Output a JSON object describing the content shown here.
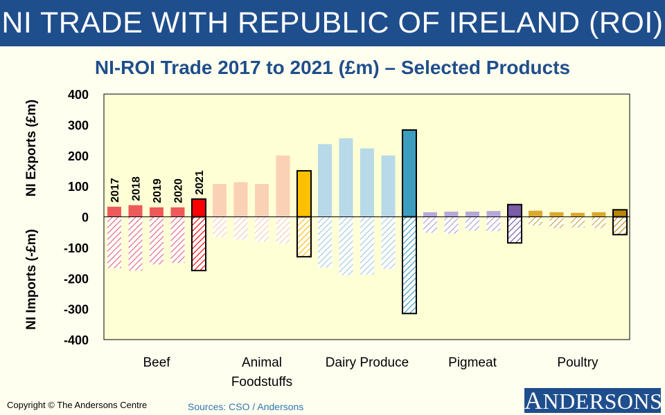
{
  "banner": {
    "title": "NI TRADE WITH REPUBLIC OF IRELAND (ROI)"
  },
  "chart_data": {
    "type": "bar",
    "title": "NI-ROI Trade 2017 to 2021 (£m) – Selected Products",
    "ylabel_top": "NI Exports (£m)",
    "ylabel_bottom": "NI Imports (-£m)",
    "ylim": [
      -400,
      400
    ],
    "yticks": [
      400,
      300,
      200,
      100,
      0,
      -100,
      -200,
      -300,
      -400
    ],
    "years": [
      "2017",
      "2018",
      "2019",
      "2020",
      "2021"
    ],
    "groups": [
      {
        "name": "Beef",
        "label_lines": [
          "Beef"
        ],
        "light": "#ee5a5a",
        "dark": "#ff0000",
        "hatch": "#e36070",
        "exports": [
          33,
          38,
          31,
          31,
          58
        ],
        "imports": [
          -167,
          -175,
          -155,
          -150,
          -175
        ]
      },
      {
        "name": "Animal Foodstuffs",
        "label_lines": [
          "Animal",
          "Foodstuffs"
        ],
        "light": "#fad1b5",
        "dark": "#ffc000",
        "hatch": "#f7c8a6",
        "exports": [
          107,
          113,
          107,
          200,
          150
        ],
        "imports": [
          -65,
          -75,
          -80,
          -88,
          -130
        ]
      },
      {
        "name": "Dairy Produce",
        "label_lines": [
          "Dairy Produce"
        ],
        "light": "#b7d9e8",
        "dark": "#3d9dbe",
        "hatch": "#9cc7dc",
        "exports": [
          237,
          256,
          223,
          200,
          283
        ],
        "imports": [
          -165,
          -190,
          -188,
          -170,
          -315
        ]
      },
      {
        "name": "Pigmeat",
        "label_lines": [
          "Pigmeat"
        ],
        "light": "#b7a8d8",
        "dark": "#7a5ca8",
        "hatch": "#a898cc",
        "exports": [
          15,
          17,
          17,
          19,
          40
        ],
        "imports": [
          -52,
          -55,
          -45,
          -47,
          -85
        ]
      },
      {
        "name": "Poultry",
        "label_lines": [
          "Poultry"
        ],
        "light": "#d9a830",
        "dark": "#b8860b",
        "hatch": "#c9a030",
        "exports": [
          20,
          15,
          13,
          15,
          23
        ],
        "imports": [
          -28,
          -37,
          -35,
          -37,
          -58
        ]
      }
    ]
  },
  "footer": {
    "copyright": "Copyright © The Andersons Centre",
    "sources": "Sources: CSO / Andersons",
    "logo_initial": "A",
    "logo_rest": "NDERSONS"
  }
}
